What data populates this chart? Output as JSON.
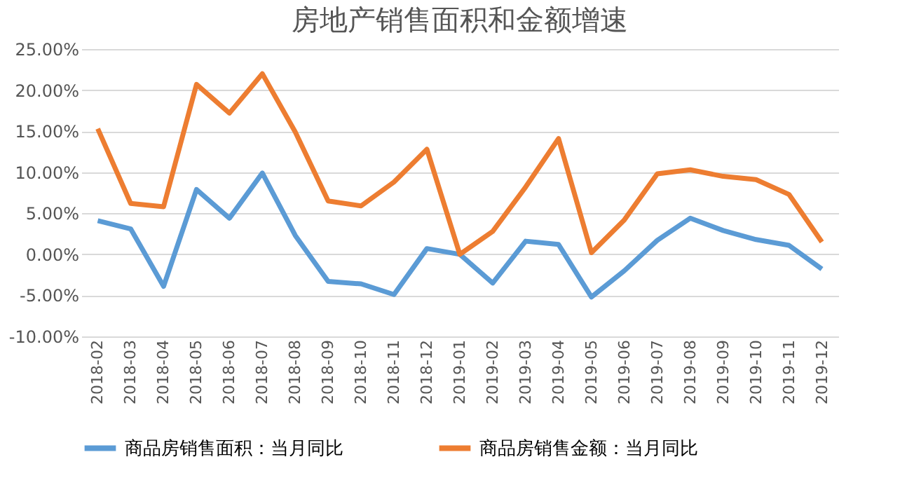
{
  "chart_data": {
    "type": "line",
    "title": "房地产销售面积和金额增速",
    "categories": [
      "2018-02",
      "2018-03",
      "2018-04",
      "2018-05",
      "2018-06",
      "2018-07",
      "2018-08",
      "2018-09",
      "2018-10",
      "2018-11",
      "2018-12",
      "2019-01",
      "2019-02",
      "2019-03",
      "2019-04",
      "2019-05",
      "2019-06",
      "2019-07",
      "2019-08",
      "2019-09",
      "2019-10",
      "2019-11",
      "2019-12"
    ],
    "series": [
      {
        "name": "商品房销售面积：当月同比",
        "color": "#5b9bd5",
        "values": [
          4.1,
          3.1,
          -3.9,
          7.9,
          4.4,
          9.9,
          2.3,
          -3.3,
          -3.6,
          -4.9,
          0.7,
          0.0,
          -3.5,
          1.6,
          1.2,
          -5.2,
          -2.0,
          1.7,
          4.4,
          2.9,
          1.8,
          1.1,
          -1.8
        ]
      },
      {
        "name": "商品房销售金额：当月同比",
        "color": "#ed7d31",
        "values": [
          15.3,
          6.2,
          5.8,
          20.7,
          17.2,
          22.0,
          14.9,
          6.5,
          5.9,
          8.8,
          12.8,
          0.0,
          2.8,
          8.2,
          14.1,
          0.2,
          4.2,
          9.8,
          10.3,
          9.5,
          9.1,
          7.3,
          1.5
        ]
      }
    ],
    "ylim": [
      -10,
      25
    ],
    "yticks": [
      {
        "value": -10,
        "label": "-10.00%"
      },
      {
        "value": -5,
        "label": "-5.00%"
      },
      {
        "value": 0,
        "label": "0.00%"
      },
      {
        "value": 5,
        "label": "5.00%"
      },
      {
        "value": 10,
        "label": "10.00%"
      },
      {
        "value": 15,
        "label": "15.00%"
      },
      {
        "value": 20,
        "label": "20.00%"
      },
      {
        "value": 25,
        "label": "25.00%"
      }
    ],
    "grid": "y",
    "legend": "bottom",
    "marker": "none",
    "line_style": "solid"
  }
}
